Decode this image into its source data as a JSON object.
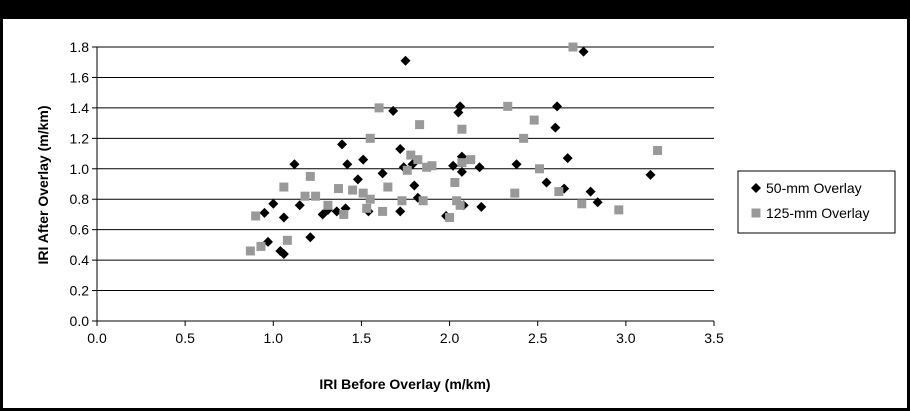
{
  "chart_data": {
    "type": "scatter",
    "title": "",
    "xlabel": "IRI Before Overlay (m/km)",
    "ylabel": "IRI After Overlay (m/km)",
    "xlim": [
      0.0,
      3.5
    ],
    "ylim": [
      0.0,
      1.8
    ],
    "x_ticks": [
      "0.0",
      "0.5",
      "1.0",
      "1.5",
      "2.0",
      "2.5",
      "3.0",
      "3.5"
    ],
    "y_ticks": [
      "0.0",
      "0.2",
      "0.4",
      "0.6",
      "0.8",
      "1.0",
      "1.2",
      "1.4",
      "1.6",
      "1.8"
    ],
    "grid": "horizontal",
    "legend": "right",
    "series": [
      {
        "name": "50-mm Overlay",
        "marker": "diamond",
        "color": "#000000",
        "points": [
          [
            0.97,
            0.52
          ],
          [
            1.0,
            0.77
          ],
          [
            1.04,
            0.46
          ],
          [
            1.06,
            0.44
          ],
          [
            1.06,
            0.68
          ],
          [
            1.12,
            1.03
          ],
          [
            1.15,
            0.76
          ],
          [
            1.21,
            0.55
          ],
          [
            1.28,
            0.7
          ],
          [
            1.31,
            0.73
          ],
          [
            1.36,
            0.72
          ],
          [
            1.39,
            1.16
          ],
          [
            1.41,
            0.74
          ],
          [
            1.42,
            1.03
          ],
          [
            1.48,
            0.93
          ],
          [
            1.51,
            1.06
          ],
          [
            1.54,
            0.72
          ],
          [
            1.62,
            0.97
          ],
          [
            1.68,
            1.38
          ],
          [
            1.72,
            0.72
          ],
          [
            1.72,
            1.13
          ],
          [
            1.74,
            1.01
          ],
          [
            1.75,
            1.71
          ],
          [
            1.79,
            1.03
          ],
          [
            1.8,
            0.89
          ],
          [
            1.82,
            0.81
          ],
          [
            1.98,
            0.69
          ],
          [
            2.02,
            1.02
          ],
          [
            2.05,
            1.37
          ],
          [
            2.06,
            1.41
          ],
          [
            2.07,
            1.08
          ],
          [
            2.07,
            0.98
          ],
          [
            2.08,
            0.76
          ],
          [
            2.17,
            1.01
          ],
          [
            2.18,
            0.75
          ],
          [
            2.38,
            1.03
          ],
          [
            2.55,
            0.91
          ],
          [
            2.61,
            1.41
          ],
          [
            2.65,
            0.87
          ],
          [
            2.67,
            1.07
          ],
          [
            2.6,
            1.27
          ],
          [
            2.76,
            1.77
          ],
          [
            2.8,
            0.85
          ],
          [
            2.84,
            0.78
          ],
          [
            3.14,
            0.96
          ],
          [
            0.95,
            0.71
          ]
        ]
      },
      {
        "name": "125-mm Overlay",
        "marker": "square",
        "color": "#999999",
        "points": [
          [
            0.87,
            0.46
          ],
          [
            0.9,
            0.69
          ],
          [
            0.93,
            0.49
          ],
          [
            1.06,
            0.88
          ],
          [
            1.08,
            0.53
          ],
          [
            1.21,
            0.95
          ],
          [
            1.24,
            0.82
          ],
          [
            1.31,
            0.76
          ],
          [
            1.37,
            0.87
          ],
          [
            1.4,
            0.7
          ],
          [
            1.45,
            0.86
          ],
          [
            1.51,
            0.84
          ],
          [
            1.53,
            0.74
          ],
          [
            1.55,
            1.2
          ],
          [
            1.55,
            0.8
          ],
          [
            1.6,
            1.4
          ],
          [
            1.62,
            0.72
          ],
          [
            1.65,
            0.88
          ],
          [
            1.73,
            0.79
          ],
          [
            1.76,
            0.99
          ],
          [
            1.78,
            1.09
          ],
          [
            1.82,
            1.06
          ],
          [
            1.83,
            1.29
          ],
          [
            1.85,
            0.79
          ],
          [
            1.87,
            1.01
          ],
          [
            1.9,
            1.02
          ],
          [
            2.0,
            0.68
          ],
          [
            2.03,
            0.91
          ],
          [
            2.04,
            0.79
          ],
          [
            2.06,
            0.76
          ],
          [
            2.07,
            1.04
          ],
          [
            2.07,
            1.26
          ],
          [
            2.12,
            1.06
          ],
          [
            2.33,
            1.41
          ],
          [
            2.37,
            0.84
          ],
          [
            2.42,
            1.2
          ],
          [
            2.48,
            1.32
          ],
          [
            2.51,
            1.0
          ],
          [
            2.62,
            0.85
          ],
          [
            2.7,
            1.8
          ],
          [
            2.75,
            0.77
          ],
          [
            2.96,
            0.73
          ],
          [
            3.18,
            1.12
          ],
          [
            1.18,
            0.82
          ]
        ]
      }
    ]
  }
}
